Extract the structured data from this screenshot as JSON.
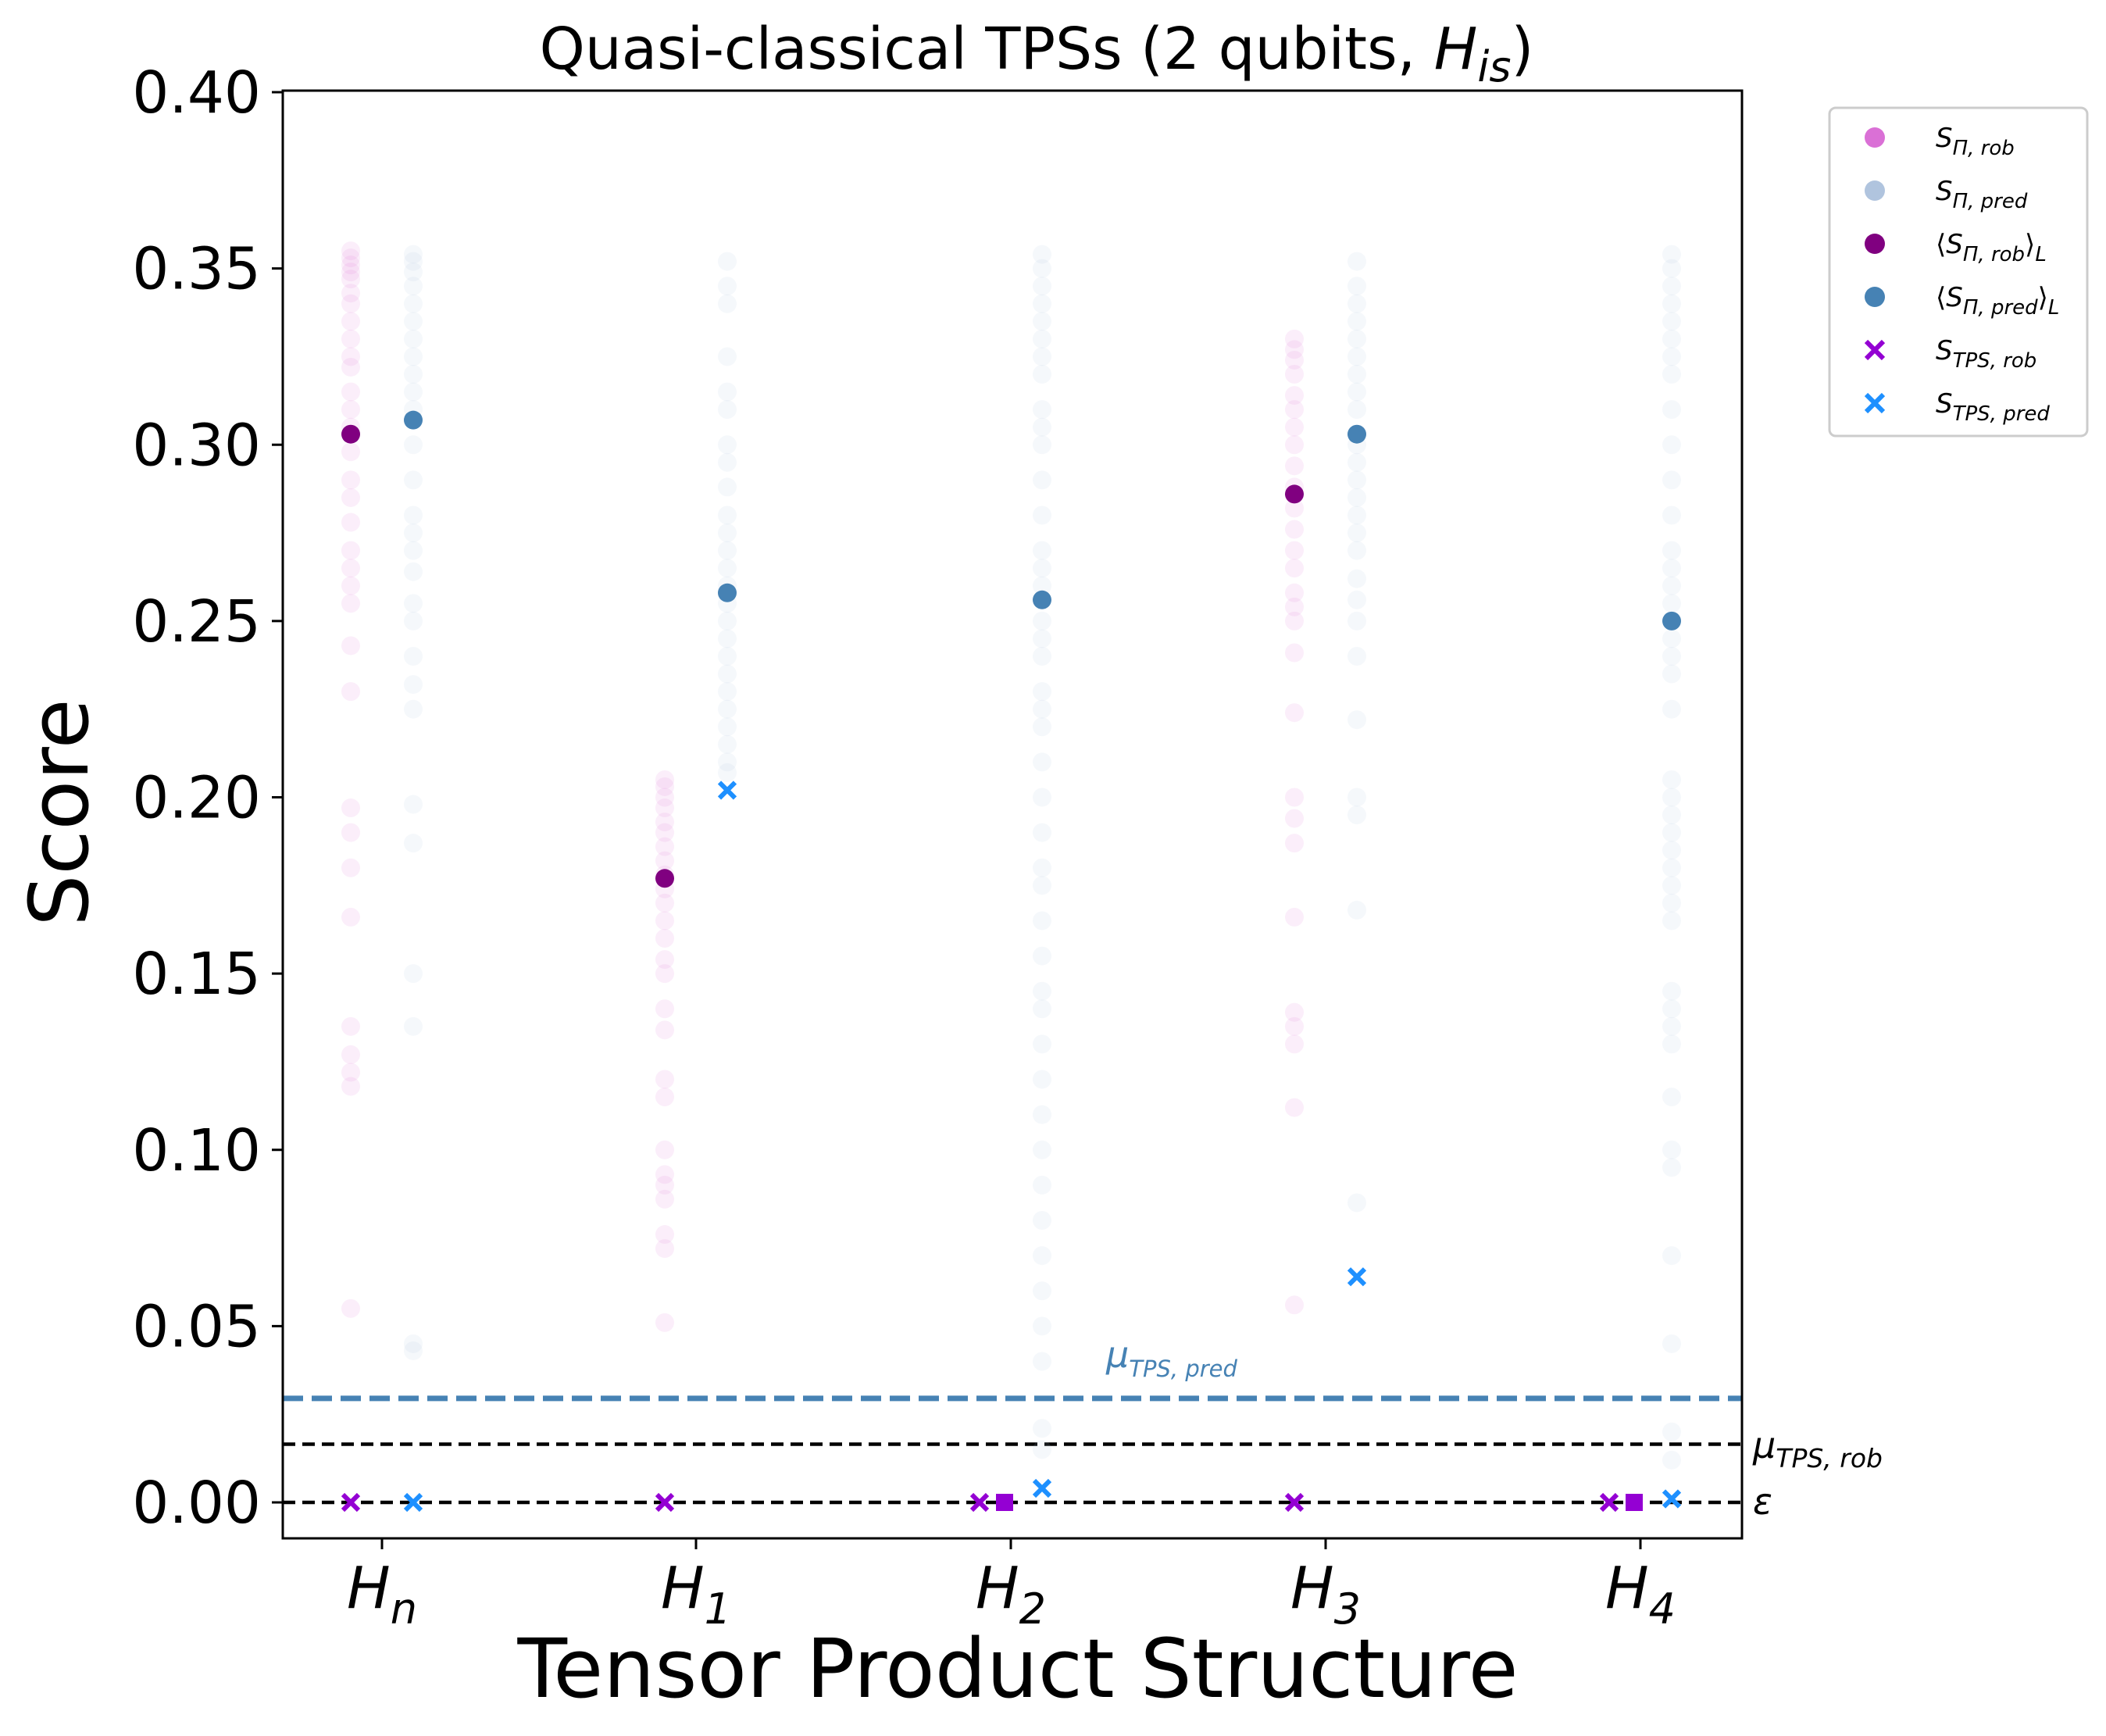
{
  "chart_data": {
    "type": "scatter",
    "title": "Quasi-classical TPSs (2 qubits, H_is)",
    "title_parts": {
      "text": "Quasi-classical TPSs (2 qubits, ",
      "math": "H",
      "sub": "is",
      "close": ")"
    },
    "xlabel": "Tensor Product Structure",
    "ylabel": "Score",
    "ylim": [
      -0.01,
      0.4
    ],
    "yticks": [
      "0.00",
      "0.05",
      "0.10",
      "0.15",
      "0.20",
      "0.25",
      "0.30",
      "0.35",
      "0.40"
    ],
    "categories": [
      {
        "base": "H",
        "sub": "n"
      },
      {
        "base": "H",
        "sub": "1"
      },
      {
        "base": "H",
        "sub": "2"
      },
      {
        "base": "H",
        "sub": "3"
      },
      {
        "base": "H",
        "sub": "4"
      }
    ],
    "colors": {
      "rob_samples": "#da70d6",
      "pred_samples": "#b0c4de",
      "rob_mean": "#800080",
      "pred_mean": "#4682b4",
      "tps_rob": "#9400d3",
      "tps_pred": "#1e90ff",
      "mu_pred_line": "#4682b4",
      "mu_rob_line": "#000000"
    },
    "series": [
      {
        "name": "S_{Π,rob}",
        "role": "rob_samples",
        "points": [
          [
            0,
            0.355
          ],
          [
            0,
            0.353
          ],
          [
            0,
            0.351
          ],
          [
            0,
            0.349
          ],
          [
            0,
            0.347
          ],
          [
            0,
            0.343
          ],
          [
            0,
            0.34
          ],
          [
            0,
            0.335
          ],
          [
            0,
            0.33
          ],
          [
            0,
            0.325
          ],
          [
            0,
            0.322
          ],
          [
            0,
            0.315
          ],
          [
            0,
            0.31
          ],
          [
            0,
            0.305
          ],
          [
            0,
            0.298
          ],
          [
            0,
            0.29
          ],
          [
            0,
            0.285
          ],
          [
            0,
            0.278
          ],
          [
            0,
            0.27
          ],
          [
            0,
            0.265
          ],
          [
            0,
            0.26
          ],
          [
            0,
            0.255
          ],
          [
            0,
            0.243
          ],
          [
            0,
            0.23
          ],
          [
            0,
            0.197
          ],
          [
            0,
            0.19
          ],
          [
            0,
            0.18
          ],
          [
            0,
            0.166
          ],
          [
            0,
            0.135
          ],
          [
            0,
            0.127
          ],
          [
            0,
            0.122
          ],
          [
            0,
            0.118
          ],
          [
            0,
            0.055
          ],
          [
            1,
            0.205
          ],
          [
            1,
            0.203
          ],
          [
            1,
            0.2
          ],
          [
            1,
            0.197
          ],
          [
            1,
            0.193
          ],
          [
            1,
            0.19
          ],
          [
            1,
            0.186
          ],
          [
            1,
            0.182
          ],
          [
            1,
            0.178
          ],
          [
            1,
            0.174
          ],
          [
            1,
            0.17
          ],
          [
            1,
            0.165
          ],
          [
            1,
            0.16
          ],
          [
            1,
            0.154
          ],
          [
            1,
            0.15
          ],
          [
            1,
            0.14
          ],
          [
            1,
            0.134
          ],
          [
            1,
            0.12
          ],
          [
            1,
            0.115
          ],
          [
            1,
            0.1
          ],
          [
            1,
            0.093
          ],
          [
            1,
            0.09
          ],
          [
            1,
            0.086
          ],
          [
            1,
            0.076
          ],
          [
            1,
            0.072
          ],
          [
            1,
            0.051
          ],
          [
            3,
            0.33
          ],
          [
            3,
            0.327
          ],
          [
            3,
            0.324
          ],
          [
            3,
            0.32
          ],
          [
            3,
            0.314
          ],
          [
            3,
            0.31
          ],
          [
            3,
            0.305
          ],
          [
            3,
            0.3
          ],
          [
            3,
            0.294
          ],
          [
            3,
            0.288
          ],
          [
            3,
            0.282
          ],
          [
            3,
            0.276
          ],
          [
            3,
            0.27
          ],
          [
            3,
            0.265
          ],
          [
            3,
            0.258
          ],
          [
            3,
            0.254
          ],
          [
            3,
            0.25
          ],
          [
            3,
            0.241
          ],
          [
            3,
            0.224
          ],
          [
            3,
            0.2
          ],
          [
            3,
            0.194
          ],
          [
            3,
            0.187
          ],
          [
            3,
            0.166
          ],
          [
            3,
            0.139
          ],
          [
            3,
            0.135
          ],
          [
            3,
            0.13
          ],
          [
            3,
            0.112
          ],
          [
            3,
            0.056
          ]
        ]
      },
      {
        "name": "S_{Π,pred}",
        "role": "pred_samples",
        "points": [
          [
            0,
            0.354
          ],
          [
            0,
            0.352
          ],
          [
            0,
            0.349
          ],
          [
            0,
            0.345
          ],
          [
            0,
            0.34
          ],
          [
            0,
            0.335
          ],
          [
            0,
            0.33
          ],
          [
            0,
            0.325
          ],
          [
            0,
            0.32
          ],
          [
            0,
            0.315
          ],
          [
            0,
            0.31
          ],
          [
            0,
            0.3
          ],
          [
            0,
            0.29
          ],
          [
            0,
            0.28
          ],
          [
            0,
            0.275
          ],
          [
            0,
            0.27
          ],
          [
            0,
            0.264
          ],
          [
            0,
            0.255
          ],
          [
            0,
            0.25
          ],
          [
            0,
            0.24
          ],
          [
            0,
            0.232
          ],
          [
            0,
            0.225
          ],
          [
            0,
            0.198
          ],
          [
            0,
            0.187
          ],
          [
            0,
            0.15
          ],
          [
            0,
            0.135
          ],
          [
            0,
            0.045
          ],
          [
            0,
            0.043
          ],
          [
            1,
            0.352
          ],
          [
            1,
            0.345
          ],
          [
            1,
            0.34
          ],
          [
            1,
            0.325
          ],
          [
            1,
            0.315
          ],
          [
            1,
            0.31
          ],
          [
            1,
            0.3
          ],
          [
            1,
            0.295
          ],
          [
            1,
            0.288
          ],
          [
            1,
            0.28
          ],
          [
            1,
            0.275
          ],
          [
            1,
            0.27
          ],
          [
            1,
            0.265
          ],
          [
            1,
            0.26
          ],
          [
            1,
            0.255
          ],
          [
            1,
            0.25
          ],
          [
            1,
            0.245
          ],
          [
            1,
            0.24
          ],
          [
            1,
            0.235
          ],
          [
            1,
            0.23
          ],
          [
            1,
            0.225
          ],
          [
            1,
            0.22
          ],
          [
            1,
            0.215
          ],
          [
            1,
            0.21
          ],
          [
            1,
            0.207
          ],
          [
            2,
            0.354
          ],
          [
            2,
            0.35
          ],
          [
            2,
            0.345
          ],
          [
            2,
            0.34
          ],
          [
            2,
            0.335
          ],
          [
            2,
            0.33
          ],
          [
            2,
            0.325
          ],
          [
            2,
            0.32
          ],
          [
            2,
            0.31
          ],
          [
            2,
            0.305
          ],
          [
            2,
            0.3
          ],
          [
            2,
            0.29
          ],
          [
            2,
            0.28
          ],
          [
            2,
            0.27
          ],
          [
            2,
            0.265
          ],
          [
            2,
            0.26
          ],
          [
            2,
            0.25
          ],
          [
            2,
            0.245
          ],
          [
            2,
            0.24
          ],
          [
            2,
            0.23
          ],
          [
            2,
            0.225
          ],
          [
            2,
            0.22
          ],
          [
            2,
            0.21
          ],
          [
            2,
            0.2
          ],
          [
            2,
            0.19
          ],
          [
            2,
            0.18
          ],
          [
            2,
            0.175
          ],
          [
            2,
            0.165
          ],
          [
            2,
            0.155
          ],
          [
            2,
            0.145
          ],
          [
            2,
            0.14
          ],
          [
            2,
            0.13
          ],
          [
            2,
            0.12
          ],
          [
            2,
            0.11
          ],
          [
            2,
            0.1
          ],
          [
            2,
            0.09
          ],
          [
            2,
            0.08
          ],
          [
            2,
            0.07
          ],
          [
            2,
            0.06
          ],
          [
            2,
            0.05
          ],
          [
            2,
            0.04
          ],
          [
            2,
            0.021
          ],
          [
            2,
            0.015
          ],
          [
            3,
            0.352
          ],
          [
            3,
            0.345
          ],
          [
            3,
            0.34
          ],
          [
            3,
            0.335
          ],
          [
            3,
            0.33
          ],
          [
            3,
            0.325
          ],
          [
            3,
            0.32
          ],
          [
            3,
            0.315
          ],
          [
            3,
            0.31
          ],
          [
            3,
            0.3
          ],
          [
            3,
            0.295
          ],
          [
            3,
            0.29
          ],
          [
            3,
            0.285
          ],
          [
            3,
            0.28
          ],
          [
            3,
            0.275
          ],
          [
            3,
            0.27
          ],
          [
            3,
            0.262
          ],
          [
            3,
            0.256
          ],
          [
            3,
            0.25
          ],
          [
            3,
            0.24
          ],
          [
            3,
            0.222
          ],
          [
            3,
            0.2
          ],
          [
            3,
            0.195
          ],
          [
            3,
            0.168
          ],
          [
            3,
            0.085
          ],
          [
            4,
            0.354
          ],
          [
            4,
            0.35
          ],
          [
            4,
            0.345
          ],
          [
            4,
            0.34
          ],
          [
            4,
            0.335
          ],
          [
            4,
            0.33
          ],
          [
            4,
            0.325
          ],
          [
            4,
            0.32
          ],
          [
            4,
            0.31
          ],
          [
            4,
            0.3
          ],
          [
            4,
            0.29
          ],
          [
            4,
            0.28
          ],
          [
            4,
            0.27
          ],
          [
            4,
            0.265
          ],
          [
            4,
            0.26
          ],
          [
            4,
            0.255
          ],
          [
            4,
            0.245
          ],
          [
            4,
            0.24
          ],
          [
            4,
            0.235
          ],
          [
            4,
            0.225
          ],
          [
            4,
            0.205
          ],
          [
            4,
            0.2
          ],
          [
            4,
            0.195
          ],
          [
            4,
            0.19
          ],
          [
            4,
            0.185
          ],
          [
            4,
            0.18
          ],
          [
            4,
            0.175
          ],
          [
            4,
            0.17
          ],
          [
            4,
            0.165
          ],
          [
            4,
            0.145
          ],
          [
            4,
            0.14
          ],
          [
            4,
            0.135
          ],
          [
            4,
            0.13
          ],
          [
            4,
            0.115
          ],
          [
            4,
            0.1
          ],
          [
            4,
            0.095
          ],
          [
            4,
            0.07
          ],
          [
            4,
            0.045
          ],
          [
            4,
            0.02
          ],
          [
            4,
            0.012
          ]
        ]
      },
      {
        "name": "⟨S_{Π,rob}⟩_L",
        "role": "rob_mean",
        "points": [
          [
            0,
            0.303
          ],
          [
            1,
            0.177
          ],
          [
            3,
            0.286
          ]
        ]
      },
      {
        "name": "⟨S_{Π,pred}⟩_L",
        "role": "pred_mean",
        "points": [
          [
            0,
            0.307
          ],
          [
            1,
            0.258
          ],
          [
            2,
            0.256
          ],
          [
            3,
            0.303
          ],
          [
            4,
            0.25
          ]
        ]
      },
      {
        "name": "S_{TPS,rob}",
        "role": "tps_rob",
        "points": [
          [
            0,
            0.0
          ],
          [
            1,
            0.0
          ],
          [
            2,
            0.0
          ],
          [
            3,
            0.0
          ],
          [
            4,
            0.0
          ]
        ]
      },
      {
        "name": "S_{TPS,pred}",
        "role": "tps_pred",
        "points": [
          [
            0,
            0.0
          ],
          [
            1,
            0.202
          ],
          [
            2,
            0.004
          ],
          [
            3,
            0.064
          ],
          [
            4,
            0.001
          ]
        ]
      }
    ],
    "extra_markers": [
      {
        "category": 2,
        "value": 0.0
      },
      {
        "category": 4,
        "value": 0.0
      }
    ],
    "hlines": [
      {
        "label": "μ_{TPS,pred}",
        "value": 0.0295,
        "style": "dashed",
        "color": "#4682b4"
      },
      {
        "label": "μ_{TPS,rob}",
        "value": 0.0165,
        "style": "dashed",
        "color": "#000000"
      },
      {
        "label": "ε",
        "value": 0.0,
        "style": "dashed",
        "color": "#000000"
      }
    ],
    "legend": {
      "position": "outside-upper-right",
      "entries": [
        {
          "base": "S",
          "sub": "Π, rob",
          "wrap": false,
          "marker": "circle",
          "role": "rob_samples"
        },
        {
          "base": "S",
          "sub": "Π, pred",
          "wrap": false,
          "marker": "circle",
          "role": "pred_samples"
        },
        {
          "base": "S",
          "sub": "Π, rob",
          "wrap": true,
          "marker": "circle",
          "role": "rob_mean"
        },
        {
          "base": "S",
          "sub": "Π, pred",
          "wrap": true,
          "marker": "circle",
          "role": "pred_mean"
        },
        {
          "base": "S",
          "sub": "TPS, rob",
          "wrap": false,
          "marker": "x",
          "role": "tps_rob"
        },
        {
          "base": "S",
          "sub": "TPS, pred",
          "wrap": false,
          "marker": "x",
          "role": "tps_pred"
        }
      ]
    },
    "hline_labels": [
      {
        "base": "μ",
        "sub": "TPS, pred",
        "role": "mu_pred_line"
      },
      {
        "base": "μ",
        "sub": "TPS, rob",
        "role": "mu_rob_line"
      },
      {
        "base": "ε",
        "sub": "",
        "role": "mu_rob_line"
      }
    ],
    "grid": false
  }
}
